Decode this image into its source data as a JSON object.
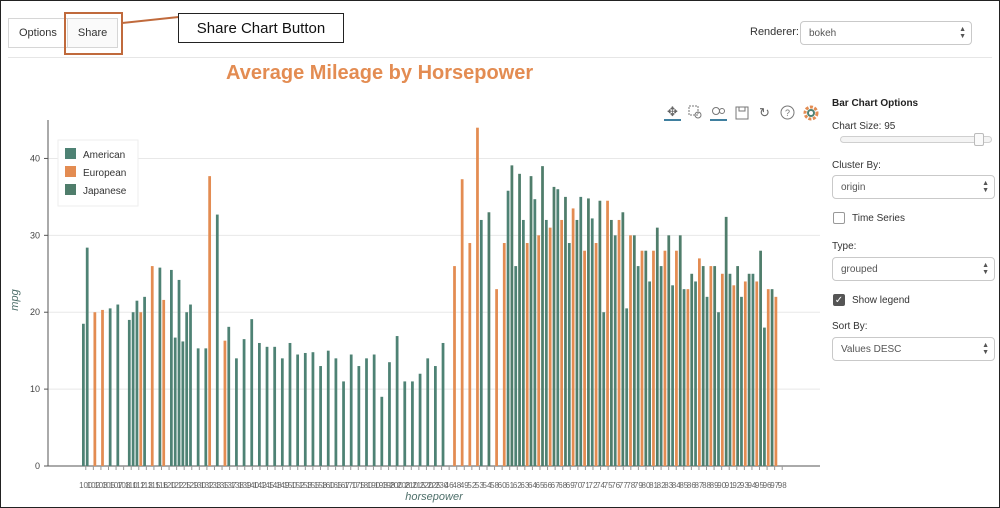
{
  "tabs": [
    {
      "label": "Options"
    },
    {
      "label": "Share"
    }
  ],
  "annotation": {
    "label": "Share Chart Button"
  },
  "renderer": {
    "label": "Renderer:",
    "value": "bokeh"
  },
  "toolbar": {
    "icons": [
      "pan-icon",
      "box-zoom-icon",
      "wheel-zoom-icon",
      "save-icon",
      "reset-icon",
      "help-icon",
      "bokeh-logo-icon"
    ]
  },
  "panel": {
    "title": "Bar Chart Options",
    "chart_size_label": "Chart Size: 95",
    "chart_size_value": 95,
    "cluster_by_label": "Cluster By:",
    "cluster_by_value": "origin",
    "time_series_label": "Time Series",
    "time_series_checked": false,
    "type_label": "Type:",
    "type_value": "grouped",
    "show_legend_label": "Show legend",
    "show_legend_checked": true,
    "sort_by_label": "Sort By:",
    "sort_by_value": "Values DESC"
  },
  "colors": {
    "american": "#4e8274",
    "european": "#e38c52",
    "japanese": "#4f7d6b"
  },
  "chart_data": {
    "type": "bar",
    "title": "Average Mileage by Horsepower",
    "xlabel": "horsepower",
    "ylabel": "mpg",
    "ylim": [
      0,
      45
    ],
    "yticks": [
      0,
      10,
      20,
      30,
      40
    ],
    "legend": {
      "placement": "top-left",
      "entries": [
        "American",
        "European",
        "Japanese"
      ]
    },
    "categories": [
      "100",
      "102",
      "103",
      "105",
      "107",
      "108",
      "110",
      "112",
      "113",
      "115",
      "116",
      "120",
      "122",
      "125",
      "129",
      "130",
      "132",
      "133",
      "135",
      "137",
      "138",
      "139",
      "140",
      "142",
      "145",
      "148",
      "149",
      "150",
      "152",
      "153",
      "155",
      "158",
      "160",
      "165",
      "167",
      "170",
      "175",
      "180",
      "190",
      "193",
      "198",
      "200",
      "208",
      "210",
      "215",
      "220",
      "225",
      "230",
      "46",
      "48",
      "49",
      "52",
      "53",
      "54",
      "58",
      "60",
      "61",
      "62",
      "63",
      "64",
      "65",
      "66",
      "67",
      "68",
      "69",
      "70",
      "71",
      "72",
      "74",
      "75",
      "76",
      "77",
      "78",
      "79",
      "80",
      "81",
      "82",
      "83",
      "84",
      "85",
      "86",
      "87",
      "88",
      "89",
      "90",
      "91",
      "92",
      "93",
      "94",
      "95",
      "96",
      "97",
      "98"
    ],
    "bars": [
      {
        "origin": "American",
        "value": 18.5,
        "slot": 0
      },
      {
        "origin": "American",
        "value": 28.4,
        "slot": 1
      },
      {
        "origin": "European",
        "value": 20.0,
        "slot": 3
      },
      {
        "origin": "European",
        "value": 20.3,
        "slot": 5
      },
      {
        "origin": "American",
        "value": 20.5,
        "slot": 7
      },
      {
        "origin": "American",
        "value": 21.0,
        "slot": 9
      },
      {
        "origin": "American",
        "value": 19.0,
        "slot": 12
      },
      {
        "origin": "American",
        "value": 20.0,
        "slot": 13
      },
      {
        "origin": "American",
        "value": 21.5,
        "slot": 14
      },
      {
        "origin": "European",
        "value": 20.0,
        "slot": 15
      },
      {
        "origin": "American",
        "value": 22.0,
        "slot": 16
      },
      {
        "origin": "European",
        "value": 26.0,
        "slot": 18
      },
      {
        "origin": "American",
        "value": 25.8,
        "slot": 20
      },
      {
        "origin": "European",
        "value": 21.6,
        "slot": 21
      },
      {
        "origin": "American",
        "value": 25.5,
        "slot": 23
      },
      {
        "origin": "American",
        "value": 16.7,
        "slot": 24
      },
      {
        "origin": "American",
        "value": 24.2,
        "slot": 25
      },
      {
        "origin": "American",
        "value": 16.2,
        "slot": 26
      },
      {
        "origin": "American",
        "value": 20.0,
        "slot": 27
      },
      {
        "origin": "American",
        "value": 21.0,
        "slot": 28
      },
      {
        "origin": "American",
        "value": 15.3,
        "slot": 30
      },
      {
        "origin": "American",
        "value": 15.3,
        "slot": 32
      },
      {
        "origin": "European",
        "value": 37.7,
        "slot": 33
      },
      {
        "origin": "American",
        "value": 32.7,
        "slot": 35
      },
      {
        "origin": "European",
        "value": 16.3,
        "slot": 37
      },
      {
        "origin": "American",
        "value": 18.1,
        "slot": 38
      },
      {
        "origin": "American",
        "value": 14.0,
        "slot": 40
      },
      {
        "origin": "American",
        "value": 16.5,
        "slot": 42
      },
      {
        "origin": "American",
        "value": 19.1,
        "slot": 44
      },
      {
        "origin": "American",
        "value": 16.0,
        "slot": 46
      },
      {
        "origin": "American",
        "value": 15.5,
        "slot": 48
      },
      {
        "origin": "American",
        "value": 15.5,
        "slot": 50
      },
      {
        "origin": "American",
        "value": 14.0,
        "slot": 52
      },
      {
        "origin": "American",
        "value": 16.0,
        "slot": 54
      },
      {
        "origin": "American",
        "value": 14.5,
        "slot": 56
      },
      {
        "origin": "American",
        "value": 14.7,
        "slot": 58
      },
      {
        "origin": "American",
        "value": 14.8,
        "slot": 60
      },
      {
        "origin": "American",
        "value": 13.0,
        "slot": 62
      },
      {
        "origin": "American",
        "value": 15.0,
        "slot": 64
      },
      {
        "origin": "American",
        "value": 14.0,
        "slot": 66
      },
      {
        "origin": "American",
        "value": 11.0,
        "slot": 68
      },
      {
        "origin": "American",
        "value": 14.5,
        "slot": 70
      },
      {
        "origin": "American",
        "value": 13.0,
        "slot": 72
      },
      {
        "origin": "American",
        "value": 14.0,
        "slot": 74
      },
      {
        "origin": "American",
        "value": 14.5,
        "slot": 76
      },
      {
        "origin": "American",
        "value": 9.0,
        "slot": 78
      },
      {
        "origin": "American",
        "value": 13.5,
        "slot": 80
      },
      {
        "origin": "American",
        "value": 16.9,
        "slot": 82
      },
      {
        "origin": "American",
        "value": 11.0,
        "slot": 84
      },
      {
        "origin": "American",
        "value": 11.0,
        "slot": 86
      },
      {
        "origin": "American",
        "value": 12.0,
        "slot": 88
      },
      {
        "origin": "American",
        "value": 14.0,
        "slot": 90
      },
      {
        "origin": "American",
        "value": 13.0,
        "slot": 92
      },
      {
        "origin": "American",
        "value": 16.0,
        "slot": 94
      },
      {
        "origin": "European",
        "value": 26.0,
        "slot": 97
      },
      {
        "origin": "European",
        "value": 37.3,
        "slot": 99
      },
      {
        "origin": "European",
        "value": 29.0,
        "slot": 101
      },
      {
        "origin": "European",
        "value": 44.0,
        "slot": 103
      },
      {
        "origin": "American",
        "value": 32.0,
        "slot": 104
      },
      {
        "origin": "Japanese",
        "value": 33.0,
        "slot": 106
      },
      {
        "origin": "European",
        "value": 23.0,
        "slot": 108
      },
      {
        "origin": "European",
        "value": 29.0,
        "slot": 110
      },
      {
        "origin": "American",
        "value": 35.8,
        "slot": 111
      },
      {
        "origin": "Japanese",
        "value": 39.1,
        "slot": 112
      },
      {
        "origin": "American",
        "value": 26.0,
        "slot": 113
      },
      {
        "origin": "Japanese",
        "value": 38.0,
        "slot": 114
      },
      {
        "origin": "American",
        "value": 32.0,
        "slot": 115
      },
      {
        "origin": "European",
        "value": 29.0,
        "slot": 116
      },
      {
        "origin": "Japanese",
        "value": 37.7,
        "slot": 117
      },
      {
        "origin": "American",
        "value": 34.7,
        "slot": 118
      },
      {
        "origin": "European",
        "value": 30.0,
        "slot": 119
      },
      {
        "origin": "Japanese",
        "value": 39.0,
        "slot": 120
      },
      {
        "origin": "American",
        "value": 32.0,
        "slot": 121
      },
      {
        "origin": "European",
        "value": 31.0,
        "slot": 122
      },
      {
        "origin": "Japanese",
        "value": 36.3,
        "slot": 123
      },
      {
        "origin": "American",
        "value": 36.0,
        "slot": 124
      },
      {
        "origin": "European",
        "value": 32.0,
        "slot": 125
      },
      {
        "origin": "Japanese",
        "value": 35.0,
        "slot": 126
      },
      {
        "origin": "American",
        "value": 29.0,
        "slot": 127
      },
      {
        "origin": "European",
        "value": 33.5,
        "slot": 128
      },
      {
        "origin": "Japanese",
        "value": 32.0,
        "slot": 129
      },
      {
        "origin": "American",
        "value": 35.0,
        "slot": 130
      },
      {
        "origin": "European",
        "value": 28.0,
        "slot": 131
      },
      {
        "origin": "Japanese",
        "value": 34.8,
        "slot": 132
      },
      {
        "origin": "American",
        "value": 32.2,
        "slot": 133
      },
      {
        "origin": "European",
        "value": 29.0,
        "slot": 134
      },
      {
        "origin": "Japanese",
        "value": 34.5,
        "slot": 135
      },
      {
        "origin": "American",
        "value": 20.0,
        "slot": 136
      },
      {
        "origin": "European",
        "value": 34.5,
        "slot": 137
      },
      {
        "origin": "Japanese",
        "value": 32.0,
        "slot": 138
      },
      {
        "origin": "American",
        "value": 30.0,
        "slot": 139
      },
      {
        "origin": "European",
        "value": 32.0,
        "slot": 140
      },
      {
        "origin": "Japanese",
        "value": 33.0,
        "slot": 141
      },
      {
        "origin": "American",
        "value": 20.5,
        "slot": 142
      },
      {
        "origin": "European",
        "value": 30.0,
        "slot": 143
      },
      {
        "origin": "Japanese",
        "value": 30.0,
        "slot": 144
      },
      {
        "origin": "American",
        "value": 26.0,
        "slot": 145
      },
      {
        "origin": "European",
        "value": 28.0,
        "slot": 146
      },
      {
        "origin": "Japanese",
        "value": 28.0,
        "slot": 147
      },
      {
        "origin": "American",
        "value": 24.0,
        "slot": 148
      },
      {
        "origin": "European",
        "value": 28.0,
        "slot": 149
      },
      {
        "origin": "Japanese",
        "value": 31.0,
        "slot": 150
      },
      {
        "origin": "American",
        "value": 26.0,
        "slot": 151
      },
      {
        "origin": "European",
        "value": 28.0,
        "slot": 152
      },
      {
        "origin": "Japanese",
        "value": 30.0,
        "slot": 153
      },
      {
        "origin": "American",
        "value": 23.5,
        "slot": 154
      },
      {
        "origin": "European",
        "value": 28.0,
        "slot": 155
      },
      {
        "origin": "Japanese",
        "value": 30.0,
        "slot": 156
      },
      {
        "origin": "American",
        "value": 23.0,
        "slot": 157
      },
      {
        "origin": "European",
        "value": 23.0,
        "slot": 158
      },
      {
        "origin": "Japanese",
        "value": 25.0,
        "slot": 159
      },
      {
        "origin": "American",
        "value": 24.0,
        "slot": 160
      },
      {
        "origin": "European",
        "value": 27.0,
        "slot": 161
      },
      {
        "origin": "Japanese",
        "value": 26.0,
        "slot": 162
      },
      {
        "origin": "American",
        "value": 22.0,
        "slot": 163
      },
      {
        "origin": "European",
        "value": 26.0,
        "slot": 164
      },
      {
        "origin": "Japanese",
        "value": 26.0,
        "slot": 165
      },
      {
        "origin": "American",
        "value": 20.0,
        "slot": 166
      },
      {
        "origin": "European",
        "value": 25.0,
        "slot": 167
      },
      {
        "origin": "Japanese",
        "value": 32.4,
        "slot": 168
      },
      {
        "origin": "American",
        "value": 25.0,
        "slot": 169
      },
      {
        "origin": "European",
        "value": 23.5,
        "slot": 170
      },
      {
        "origin": "Japanese",
        "value": 26.0,
        "slot": 171
      },
      {
        "origin": "American",
        "value": 22.0,
        "slot": 172
      },
      {
        "origin": "European",
        "value": 24.0,
        "slot": 173
      },
      {
        "origin": "Japanese",
        "value": 25.0,
        "slot": 174
      },
      {
        "origin": "American",
        "value": 25.0,
        "slot": 175
      },
      {
        "origin": "European",
        "value": 24.0,
        "slot": 176
      },
      {
        "origin": "Japanese",
        "value": 28.0,
        "slot": 177
      },
      {
        "origin": "American",
        "value": 18.0,
        "slot": 178
      },
      {
        "origin": "European",
        "value": 23.0,
        "slot": 179
      },
      {
        "origin": "Japanese",
        "value": 23.0,
        "slot": 180
      },
      {
        "origin": "European",
        "value": 22.0,
        "slot": 181
      }
    ]
  }
}
